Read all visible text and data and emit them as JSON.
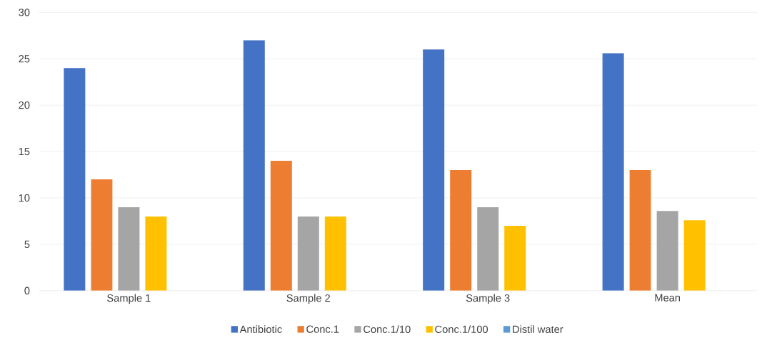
{
  "chart_data": {
    "type": "bar",
    "categories": [
      "Sample 1",
      "Sample 2",
      "Sample 3",
      "Mean"
    ],
    "series": [
      {
        "name": "Antibiotic",
        "color": "#4472c4",
        "values": [
          24,
          27,
          26,
          25.6
        ]
      },
      {
        "name": "Conc.1",
        "color": "#ed7d31",
        "values": [
          12,
          14,
          13,
          13
        ]
      },
      {
        "name": "Conc.1/10",
        "color": "#a5a5a5",
        "values": [
          9,
          8,
          9,
          8.6
        ]
      },
      {
        "name": "Conc.1/100",
        "color": "#ffc000",
        "values": [
          8,
          8,
          7,
          7.6
        ]
      },
      {
        "name": "Distil water",
        "color": "#5b9bd5",
        "values": [
          0,
          0,
          0,
          0
        ]
      }
    ],
    "ylim": [
      0,
      30
    ],
    "yticks": [
      0,
      5,
      10,
      15,
      20,
      25,
      30
    ],
    "grid": "y",
    "legend": "bottom"
  }
}
